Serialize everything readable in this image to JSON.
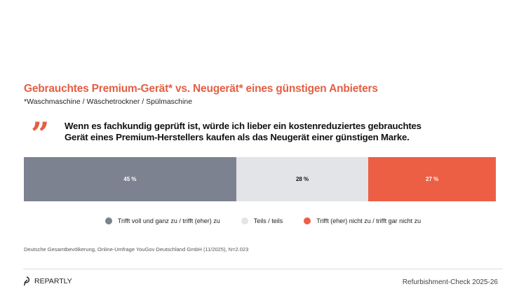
{
  "title": "Gebrauchtes Premium-Gerät* vs. Neugerät* eines günstigen Anbieters",
  "subtitle": "*Waschmaschine / Wäschetrockner / Spülmaschine",
  "quote_mark": "”",
  "statement": "Wenn es fachkundig geprüft ist, würde ich lieber ein kostenreduziertes gebrauchtes Gerät eines Premium-Herstellers kaufen als das Neugerät einer günstigen Marke.",
  "chart_data": {
    "type": "bar",
    "orientation": "horizontal-stacked-100",
    "unit": "%",
    "series": [
      {
        "name": "Trifft voll und ganz zu / trifft (eher) zu",
        "value": 45,
        "label": "45 %",
        "color": "#7d8290",
        "text_color": "#ffffff"
      },
      {
        "name": "Teils / teils",
        "value": 28,
        "label": "28 %",
        "color": "#e3e4e8",
        "text_color": "#111111"
      },
      {
        "name": "Trifft (eher) nicht zu / trifft gar nicht zu",
        "value": 27,
        "label": "27 %",
        "color": "#ec5f45",
        "text_color": "#ffffff"
      }
    ],
    "legend_position": "bottom"
  },
  "source": "Deutsche Gesamtbevölkerung, Online-Umfrage YouGov Deutschland GmbH (11/2025), N=2.023",
  "footer": {
    "logo": "REPARTLY",
    "right": "Refurbishment-Check 2025-26"
  },
  "colors": {
    "accent": "#e35f43"
  }
}
